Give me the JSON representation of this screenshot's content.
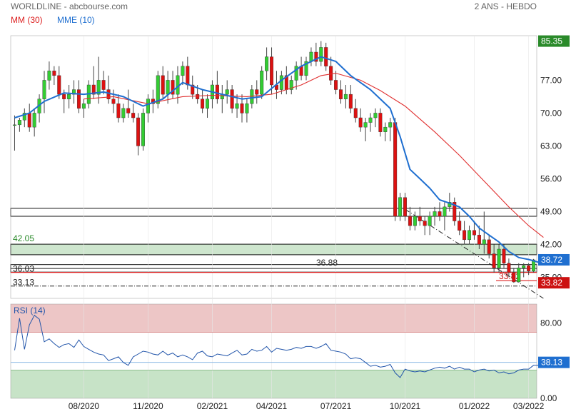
{
  "header": {
    "source": "WORLDLINE - abcbourse.com",
    "period": "2 ANS - HEBDO",
    "legend_ma": "MM (30)",
    "legend_ema": "MME (10)",
    "rsi_label": "RSI (14)"
  },
  "colors": {
    "up": "#33cc33",
    "down": "#dd1111",
    "ma30": "#e03030",
    "ema10": "#1f6fd0",
    "rsi": "#2255aa",
    "last_price": "#1f6fd0",
    "low_price": "#cc1111",
    "high_price": "#2a8a2a",
    "overbought_zone": "#e8b8b8",
    "oversold_zone": "#b9dcb9"
  },
  "chart_data": [
    {
      "type": "candlestick",
      "title": "WORLDLINE",
      "x_ticks": [
        "08/2020",
        "11/2020",
        "02/2021",
        "04/2021",
        "07/2021",
        "10/2021",
        "01/2022",
        "03/2022"
      ],
      "x_tick_weeks": [
        14,
        27,
        40,
        52,
        65,
        79,
        93,
        104
      ],
      "y_ticks": [
        77.0,
        70.0,
        63.0,
        56.0,
        49.0,
        42.0,
        35.0
      ],
      "ylim": [
        30.5,
        86.5
      ],
      "price_badges": {
        "high": "85.35",
        "last": "38.72",
        "low": "33.82"
      },
      "levels": [
        {
          "label": "42.05",
          "value": 42.05
        },
        {
          "label": "36.88",
          "value": 36.88
        },
        {
          "label": "36.03",
          "value": 36.03
        },
        {
          "label": "33.13",
          "value": 33.13
        },
        {
          "label": "33.82",
          "value": 33.82
        }
      ],
      "zones": [
        [
          48.0,
          49.7
        ],
        [
          39.8,
          42.05
        ],
        [
          36.1,
          37.7
        ]
      ],
      "ohlc": [
        [
          67.5,
          69.5,
          62,
          67.5
        ],
        [
          67.5,
          69,
          66,
          68.5
        ],
        [
          68.5,
          71,
          67,
          70
        ],
        [
          70,
          72,
          66,
          67
        ],
        [
          67,
          71,
          65,
          70
        ],
        [
          70,
          74,
          68,
          73
        ],
        [
          73,
          79,
          70,
          77
        ],
        [
          77,
          81,
          75,
          79
        ],
        [
          79,
          80,
          76,
          78
        ],
        [
          78,
          80,
          73,
          74
        ],
        [
          74,
          75,
          70,
          73
        ],
        [
          73,
          76,
          71,
          74
        ],
        [
          74,
          77,
          72,
          75
        ],
        [
          75,
          77,
          70,
          71
        ],
        [
          71,
          73,
          69,
          72
        ],
        [
          72,
          77,
          71,
          76
        ],
        [
          76,
          80,
          73,
          74
        ],
        [
          74,
          82,
          72,
          77
        ],
        [
          77,
          79,
          74,
          75
        ],
        [
          75,
          78,
          72,
          73
        ],
        [
          73,
          75,
          70,
          72
        ],
        [
          72,
          74,
          68,
          69
        ],
        [
          69,
          72,
          68,
          71
        ],
        [
          71,
          75,
          69,
          70
        ],
        [
          70,
          72,
          68,
          69
        ],
        [
          69,
          70,
          61,
          63
        ],
        [
          63,
          71,
          62,
          70
        ],
        [
          70,
          74,
          68,
          73
        ],
        [
          73,
          75,
          70,
          72
        ],
        [
          72,
          79,
          71,
          78
        ],
        [
          78,
          80,
          73,
          74
        ],
        [
          74,
          79,
          72,
          77
        ],
        [
          77,
          79,
          73,
          74
        ],
        [
          74,
          80,
          72,
          78
        ],
        [
          78,
          81,
          76,
          80
        ],
        [
          80,
          82,
          75,
          76
        ],
        [
          76,
          78,
          73,
          74
        ],
        [
          74,
          76,
          72,
          73
        ],
        [
          73,
          75,
          70,
          71
        ],
        [
          71,
          74,
          69,
          73
        ],
        [
          73,
          77,
          71,
          76
        ],
        [
          76,
          79,
          72,
          73
        ],
        [
          73,
          76,
          70,
          74
        ],
        [
          74,
          77,
          72,
          75
        ],
        [
          75,
          76,
          70,
          71
        ],
        [
          71,
          74,
          69,
          72
        ],
        [
          72,
          74,
          68,
          70
        ],
        [
          70,
          73,
          68,
          72
        ],
        [
          72,
          76,
          71,
          75
        ],
        [
          75,
          77,
          72,
          74
        ],
        [
          74,
          80,
          73,
          79
        ],
        [
          79,
          84,
          77,
          82
        ],
        [
          82,
          84,
          74,
          76
        ],
        [
          76,
          79,
          73,
          75
        ],
        [
          75,
          79,
          74,
          78
        ],
        [
          78,
          80,
          74,
          75
        ],
        [
          75,
          78,
          74,
          77
        ],
        [
          77,
          81,
          75,
          80
        ],
        [
          80,
          82,
          77,
          78
        ],
        [
          78,
          82,
          77,
          81
        ],
        [
          81,
          84,
          80,
          83
        ],
        [
          83,
          85,
          80,
          81
        ],
        [
          81,
          85.35,
          80,
          84
        ],
        [
          84,
          85,
          79,
          80
        ],
        [
          80,
          82,
          76,
          77
        ],
        [
          77,
          79,
          74,
          75
        ],
        [
          75,
          77,
          72,
          73
        ],
        [
          73,
          76,
          71,
          74
        ],
        [
          74,
          76,
          70,
          71
        ],
        [
          71,
          73,
          68,
          69
        ],
        [
          69,
          71,
          66,
          67
        ],
        [
          67,
          69,
          64,
          68
        ],
        [
          68,
          70,
          66,
          69
        ],
        [
          69,
          71,
          67,
          70
        ],
        [
          70,
          71,
          65,
          66
        ],
        [
          66,
          68,
          64,
          67
        ],
        [
          67,
          69,
          64,
          68
        ],
        [
          68,
          69,
          47,
          48
        ],
        [
          48,
          53,
          47,
          52
        ],
        [
          52,
          53,
          47,
          48
        ],
        [
          48,
          50,
          45,
          46
        ],
        [
          46,
          49,
          45,
          48
        ],
        [
          48,
          50,
          46,
          47
        ],
        [
          47,
          48,
          44,
          46
        ],
        [
          46,
          49,
          44,
          48
        ],
        [
          48,
          50,
          46,
          49
        ],
        [
          49,
          51,
          47,
          48
        ],
        [
          48,
          51,
          45,
          50
        ],
        [
          50,
          53,
          49,
          51
        ],
        [
          51,
          52,
          46,
          47
        ],
        [
          47,
          49,
          44,
          45
        ],
        [
          45,
          47,
          42,
          43
        ],
        [
          43,
          46,
          42,
          45
        ],
        [
          45,
          47,
          43,
          44
        ],
        [
          44,
          46,
          41,
          42
        ],
        [
          42,
          49,
          40,
          43
        ],
        [
          43,
          44,
          39,
          40
        ],
        [
          40,
          42,
          36,
          37
        ],
        [
          37,
          42,
          36,
          41
        ],
        [
          41,
          42,
          37,
          38
        ],
        [
          38,
          39,
          35,
          36
        ],
        [
          36,
          37,
          33.82,
          34
        ],
        [
          34,
          38,
          33.9,
          37
        ],
        [
          37,
          38,
          35,
          37.5
        ],
        [
          37.5,
          38,
          35.5,
          36.3
        ],
        [
          36.3,
          38.9,
          36,
          38.72
        ]
      ],
      "ma30_points": [
        [
          14,
          73
        ],
        [
          20,
          73.5
        ],
        [
          27,
          72
        ],
        [
          34,
          73.5
        ],
        [
          40,
          73.8
        ],
        [
          47,
          73.5
        ],
        [
          52,
          74
        ],
        [
          58,
          76
        ],
        [
          62,
          78
        ],
        [
          65,
          78.5
        ],
        [
          70,
          77
        ],
        [
          74,
          74.8
        ],
        [
          79,
          71.5
        ],
        [
          85,
          66
        ],
        [
          90,
          61
        ],
        [
          95,
          55.5
        ],
        [
          100,
          50
        ],
        [
          104,
          46
        ],
        [
          107,
          43.5
        ]
      ],
      "ema10_points": [
        [
          0,
          69
        ],
        [
          3,
          70
        ],
        [
          6,
          72.5
        ],
        [
          10,
          74.3
        ],
        [
          14,
          74
        ],
        [
          18,
          74.5
        ],
        [
          22,
          73.5
        ],
        [
          26,
          71.5
        ],
        [
          30,
          73
        ],
        [
          34,
          76.5
        ],
        [
          38,
          75
        ],
        [
          42,
          74
        ],
        [
          46,
          73
        ],
        [
          50,
          73.5
        ],
        [
          54,
          77
        ],
        [
          58,
          80
        ],
        [
          62,
          82
        ],
        [
          65,
          81
        ],
        [
          68,
          78
        ],
        [
          72,
          75
        ],
        [
          76,
          71
        ],
        [
          78,
          65
        ],
        [
          80,
          58
        ],
        [
          82,
          56
        ],
        [
          84,
          54
        ],
        [
          86,
          51.5
        ],
        [
          88,
          50.8
        ],
        [
          90,
          50
        ],
        [
          92,
          48
        ],
        [
          94,
          45.5
        ],
        [
          96,
          44
        ],
        [
          98,
          42.5
        ],
        [
          100,
          40.5
        ],
        [
          102,
          39.2
        ],
        [
          104,
          38.8
        ],
        [
          106,
          38.2
        ],
        [
          107,
          38.5
        ]
      ]
    },
    {
      "type": "line",
      "title": "RSI (14)",
      "y_ticks": [
        80.0,
        0.0
      ],
      "ylim": [
        0,
        100
      ],
      "price_badge": "38.13",
      "overbought": 70,
      "oversold": 30,
      "values": [
        51,
        85,
        52,
        78,
        88,
        84,
        60,
        63,
        58,
        54,
        57,
        58,
        54,
        62,
        55,
        52,
        49,
        47,
        46,
        40,
        42,
        44,
        38,
        35,
        44,
        47,
        50,
        49,
        47,
        46,
        50,
        46,
        48,
        44,
        46,
        44,
        41,
        48,
        50,
        45,
        44,
        47,
        46,
        45,
        48,
        51,
        46,
        47,
        52,
        50,
        51,
        55,
        49,
        53,
        52,
        51,
        52,
        54,
        53,
        55,
        55,
        53,
        55,
        58,
        51,
        50,
        49,
        47,
        42,
        43,
        42,
        38,
        34,
        35,
        33,
        34,
        36,
        27,
        22,
        31,
        29,
        28,
        29,
        28,
        30,
        32,
        33,
        32,
        34,
        31,
        33,
        31,
        31,
        28,
        30,
        31,
        29,
        30,
        27,
        28,
        26,
        27,
        30,
        31,
        31,
        35,
        35,
        36,
        38.13
      ]
    }
  ]
}
